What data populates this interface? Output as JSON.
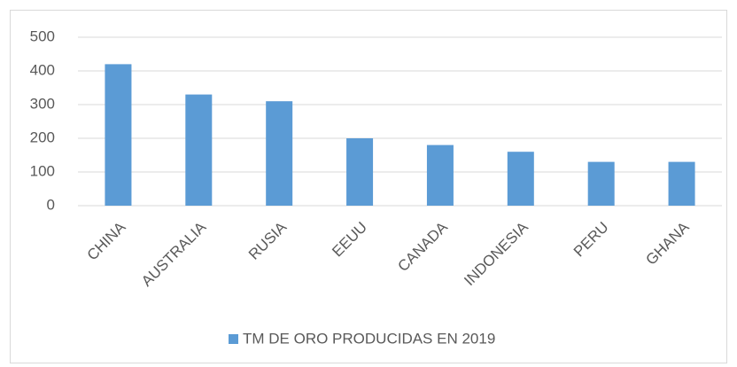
{
  "chart_data": {
    "type": "bar",
    "categories": [
      "CHINA",
      "AUSTRALIA",
      "RUSIA",
      "EEUU",
      "CANADA",
      "INDONESIA",
      "PERU",
      "GHANA"
    ],
    "series": [
      {
        "name": "TM DE ORO PRODUCIDAS EN 2019",
        "color": "#5b9bd5",
        "values": [
          420,
          330,
          310,
          200,
          180,
          160,
          130,
          130
        ]
      }
    ],
    "ylim": [
      0,
      500
    ],
    "yticks": [
      0,
      100,
      200,
      300,
      400,
      500
    ],
    "grid": true,
    "legend": "bottom"
  }
}
